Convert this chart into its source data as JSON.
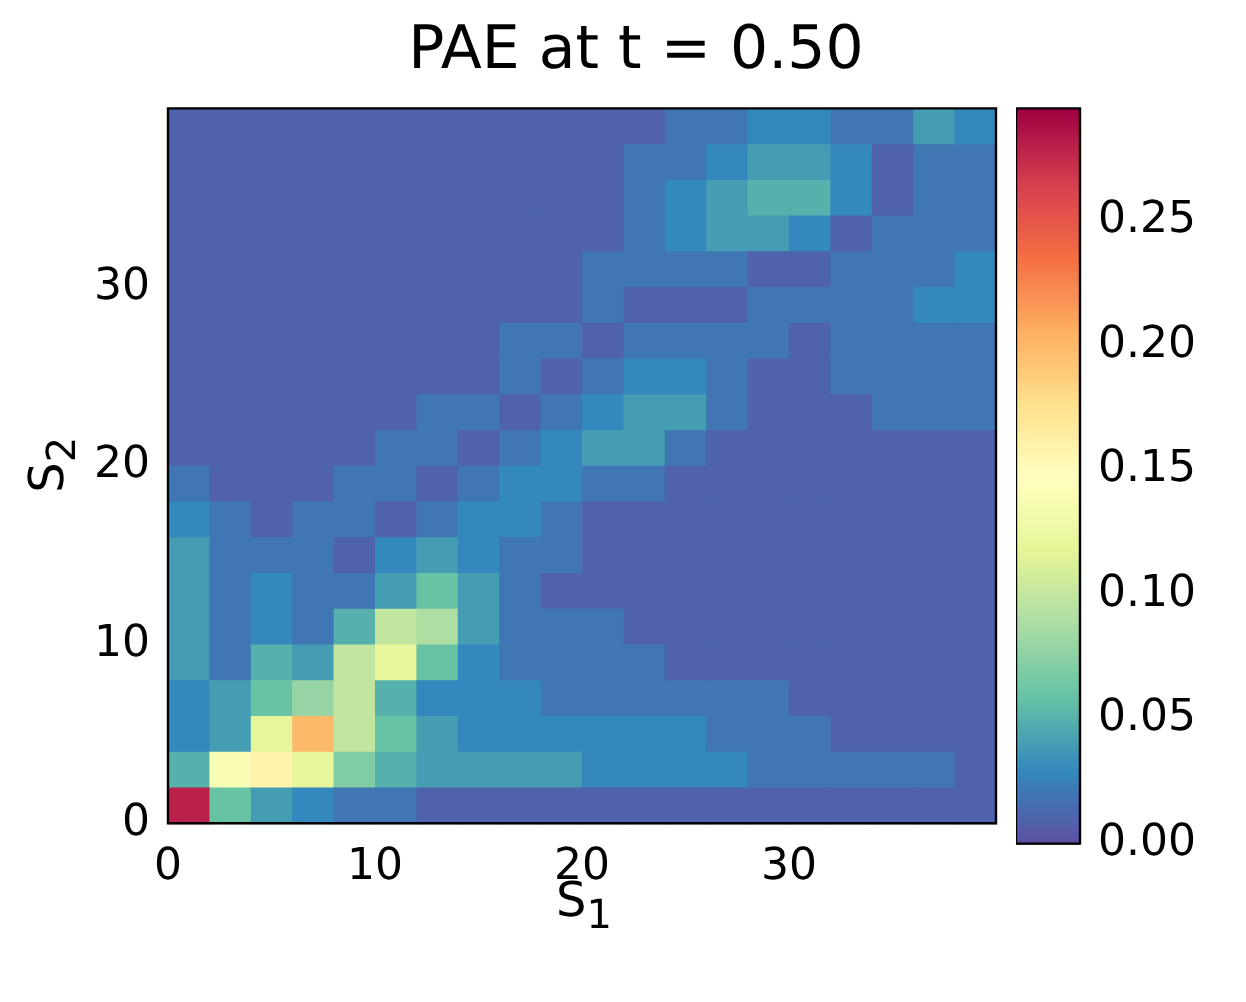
{
  "chart_data": {
    "type": "heatmap",
    "title": "PAE at t = 0.50",
    "xlabel": "S$_{1}$",
    "ylabel": "S$_{2}$",
    "x": [
      1,
      3,
      5,
      7,
      9,
      11,
      13,
      15,
      17,
      19,
      21,
      23,
      25,
      27,
      29,
      31,
      33,
      35,
      37,
      39
    ],
    "y": [
      39,
      37,
      35,
      33,
      31,
      29,
      27,
      25,
      23,
      21,
      19,
      17,
      15,
      13,
      11,
      9,
      7,
      5,
      3,
      1
    ],
    "xlim": [
      0,
      40
    ],
    "xticks": [
      0,
      10,
      20,
      30
    ],
    "ylim": [
      0,
      40
    ],
    "yticks": [
      0,
      10,
      20,
      30
    ],
    "clim": [
      0,
      0.295
    ],
    "cticks": [
      {
        "value": 0,
        "label": "0.00"
      },
      {
        "value": 0.05,
        "label": "0.05"
      },
      {
        "value": 0.1,
        "label": "0.10"
      },
      {
        "value": 0.15,
        "label": "0.15"
      },
      {
        "value": 0.2,
        "label": "0.20"
      },
      {
        "value": 0.25,
        "label": "0.25"
      }
    ],
    "grid": false,
    "cells": [
      [
        0.01,
        0.01,
        0.01,
        0.01,
        0.01,
        0.01,
        0.01,
        0.01,
        0.01,
        0.01,
        0.01,
        0.01,
        0.02,
        0.02,
        0.03,
        0.03,
        0.02,
        0.02,
        0.04,
        0.03
      ],
      [
        0.01,
        0.01,
        0.01,
        0.01,
        0.01,
        0.01,
        0.01,
        0.01,
        0.01,
        0.01,
        0.01,
        0.02,
        0.02,
        0.03,
        0.04,
        0.04,
        0.03,
        0.01,
        0.02,
        0.02
      ],
      [
        0.01,
        0.01,
        0.01,
        0.01,
        0.01,
        0.01,
        0.01,
        0.01,
        0.01,
        0.01,
        0.01,
        0.02,
        0.03,
        0.04,
        0.05,
        0.05,
        0.03,
        0.01,
        0.02,
        0.02
      ],
      [
        0.01,
        0.01,
        0.01,
        0.01,
        0.01,
        0.01,
        0.01,
        0.01,
        0.01,
        0.01,
        0.01,
        0.02,
        0.03,
        0.04,
        0.04,
        0.03,
        0.01,
        0.02,
        0.02,
        0.02
      ],
      [
        0.01,
        0.01,
        0.01,
        0.01,
        0.01,
        0.01,
        0.01,
        0.01,
        0.01,
        0.01,
        0.02,
        0.02,
        0.02,
        0.02,
        0.01,
        0.01,
        0.02,
        0.02,
        0.02,
        0.03
      ],
      [
        0.01,
        0.01,
        0.01,
        0.01,
        0.01,
        0.01,
        0.01,
        0.01,
        0.01,
        0.01,
        0.02,
        0.01,
        0.01,
        0.01,
        0.02,
        0.02,
        0.02,
        0.02,
        0.03,
        0.03
      ],
      [
        0.01,
        0.01,
        0.01,
        0.01,
        0.01,
        0.01,
        0.01,
        0.01,
        0.02,
        0.02,
        0.01,
        0.02,
        0.02,
        0.02,
        0.02,
        0.01,
        0.02,
        0.02,
        0.02,
        0.02
      ],
      [
        0.01,
        0.01,
        0.01,
        0.01,
        0.01,
        0.01,
        0.01,
        0.01,
        0.02,
        0.01,
        0.02,
        0.03,
        0.03,
        0.02,
        0.01,
        0.01,
        0.02,
        0.02,
        0.02,
        0.02
      ],
      [
        0.01,
        0.01,
        0.01,
        0.01,
        0.01,
        0.01,
        0.02,
        0.02,
        0.01,
        0.02,
        0.03,
        0.04,
        0.04,
        0.02,
        0.01,
        0.01,
        0.01,
        0.02,
        0.02,
        0.02
      ],
      [
        0.01,
        0.01,
        0.01,
        0.01,
        0.01,
        0.02,
        0.02,
        0.01,
        0.02,
        0.03,
        0.04,
        0.04,
        0.02,
        0.01,
        0.01,
        0.01,
        0.01,
        0.01,
        0.01,
        0.01
      ],
      [
        0.02,
        0.01,
        0.01,
        0.01,
        0.02,
        0.02,
        0.01,
        0.02,
        0.03,
        0.03,
        0.02,
        0.02,
        0.01,
        0.01,
        0.01,
        0.01,
        0.01,
        0.01,
        0.01,
        0.01
      ],
      [
        0.03,
        0.02,
        0.01,
        0.02,
        0.02,
        0.01,
        0.02,
        0.03,
        0.03,
        0.02,
        0.01,
        0.01,
        0.01,
        0.01,
        0.01,
        0.01,
        0.01,
        0.01,
        0.01,
        0.01
      ],
      [
        0.04,
        0.02,
        0.02,
        0.02,
        0.01,
        0.03,
        0.04,
        0.03,
        0.02,
        0.02,
        0.01,
        0.01,
        0.01,
        0.01,
        0.01,
        0.01,
        0.01,
        0.01,
        0.01,
        0.01
      ],
      [
        0.04,
        0.02,
        0.03,
        0.02,
        0.02,
        0.04,
        0.06,
        0.04,
        0.02,
        0.01,
        0.01,
        0.01,
        0.01,
        0.01,
        0.01,
        0.01,
        0.01,
        0.01,
        0.01,
        0.01
      ],
      [
        0.04,
        0.02,
        0.03,
        0.02,
        0.05,
        0.1,
        0.09,
        0.04,
        0.02,
        0.02,
        0.02,
        0.01,
        0.01,
        0.01,
        0.01,
        0.01,
        0.01,
        0.01,
        0.01,
        0.01
      ],
      [
        0.04,
        0.02,
        0.05,
        0.04,
        0.1,
        0.12,
        0.06,
        0.03,
        0.02,
        0.02,
        0.02,
        0.02,
        0.01,
        0.01,
        0.01,
        0.01,
        0.01,
        0.01,
        0.01,
        0.01
      ],
      [
        0.03,
        0.04,
        0.06,
        0.08,
        0.1,
        0.05,
        0.03,
        0.03,
        0.03,
        0.02,
        0.02,
        0.02,
        0.02,
        0.02,
        0.02,
        0.01,
        0.01,
        0.01,
        0.01,
        0.01
      ],
      [
        0.03,
        0.04,
        0.12,
        0.2,
        0.1,
        0.06,
        0.04,
        0.03,
        0.03,
        0.03,
        0.03,
        0.03,
        0.03,
        0.02,
        0.02,
        0.02,
        0.01,
        0.01,
        0.01,
        0.01
      ],
      [
        0.05,
        0.14,
        0.16,
        0.12,
        0.07,
        0.05,
        0.04,
        0.04,
        0.04,
        0.04,
        0.03,
        0.03,
        0.03,
        0.03,
        0.02,
        0.02,
        0.02,
        0.02,
        0.02,
        0.01
      ],
      [
        0.28,
        0.06,
        0.04,
        0.03,
        0.02,
        0.02,
        0.01,
        0.01,
        0.01,
        0.01,
        0.01,
        0.01,
        0.01,
        0.01,
        0.01,
        0.01,
        0.01,
        0.01,
        0.01,
        0.01
      ]
    ]
  }
}
